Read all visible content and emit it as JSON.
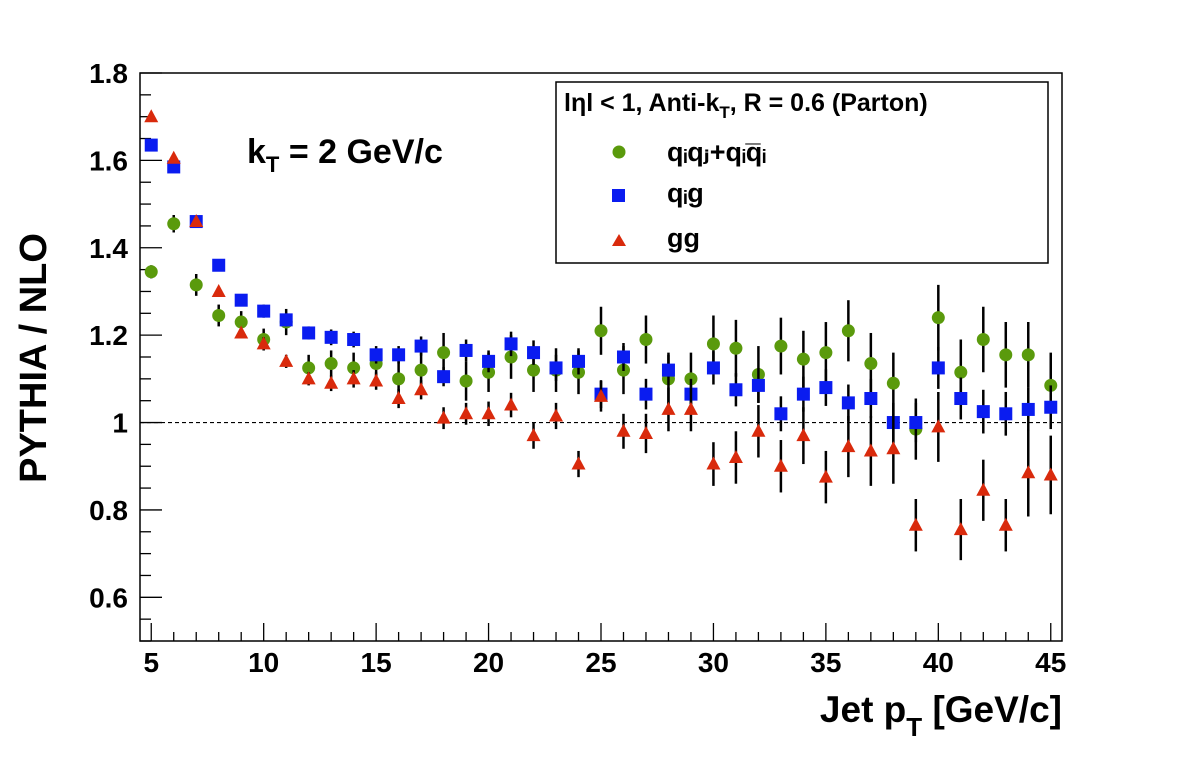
{
  "chart_data": {
    "type": "scatter",
    "xlabel_main": "Jet p",
    "xlabel_sub": "T",
    "xlabel_tail": " [GeV/c]",
    "ylabel": "PYTHIA / NLO",
    "xlim": [
      4.5,
      45.5
    ],
    "ylim": [
      0.5,
      1.8
    ],
    "xticks": [
      5,
      10,
      15,
      20,
      25,
      30,
      35,
      40,
      45
    ],
    "yticks": [
      0.6,
      0.8,
      1,
      1.2,
      1.4,
      1.6,
      1.8
    ],
    "ytick_labels": [
      "0.6",
      "0.8",
      "1",
      "1.2",
      "1.4",
      "1.6",
      "1.8"
    ],
    "reference_line": 1.0,
    "annotation": {
      "main": "k",
      "sub": "T",
      "tail": " = 2 GeV/c"
    },
    "legend": {
      "placement": "top-right",
      "header_pre": "lηl < 1, Anti-k",
      "header_sub": "T",
      "header_post": ", R = 0.6 (Parton)",
      "entries": [
        {
          "key": "qq",
          "label": "qᵢqⱼ+qᵢq̅ᵢ"
        },
        {
          "key": "qg",
          "label": "qᵢg"
        },
        {
          "key": "gg",
          "label": "gg"
        }
      ]
    },
    "series": [
      {
        "key": "qq",
        "marker": "circle",
        "color": "#5a9a0c",
        "x": [
          5,
          6,
          7,
          8,
          9,
          10,
          11,
          12,
          13,
          14,
          15,
          16,
          17,
          18,
          19,
          20,
          21,
          22,
          23,
          24,
          25,
          26,
          27,
          28,
          29,
          30,
          31,
          32,
          33,
          34,
          35,
          36,
          37,
          38,
          39,
          40,
          41,
          42,
          43,
          44,
          45
        ],
        "y": [
          1.345,
          1.455,
          1.315,
          1.245,
          1.23,
          1.19,
          1.23,
          1.125,
          1.135,
          1.125,
          1.135,
          1.1,
          1.12,
          1.16,
          1.095,
          1.115,
          1.15,
          1.12,
          1.12,
          1.115,
          1.21,
          1.12,
          1.19,
          1.1,
          1.1,
          1.18,
          1.17,
          1.11,
          1.175,
          1.145,
          1.16,
          1.21,
          1.135,
          1.09,
          0.985,
          1.24,
          1.115,
          1.19,
          1.155,
          1.155,
          1.085
        ],
        "err": [
          0.015,
          0.02,
          0.025,
          0.025,
          0.025,
          0.025,
          0.03,
          0.03,
          0.03,
          0.035,
          0.035,
          0.04,
          0.04,
          0.045,
          0.045,
          0.045,
          0.05,
          0.05,
          0.05,
          0.05,
          0.055,
          0.055,
          0.055,
          0.06,
          0.06,
          0.065,
          0.065,
          0.065,
          0.065,
          0.065,
          0.07,
          0.07,
          0.07,
          0.07,
          0.07,
          0.075,
          0.075,
          0.075,
          0.075,
          0.075,
          0.075
        ]
      },
      {
        "key": "qg",
        "marker": "square",
        "color": "#0a1cf0",
        "x": [
          5,
          6,
          7,
          8,
          9,
          10,
          11,
          12,
          13,
          14,
          15,
          16,
          17,
          18,
          19,
          20,
          21,
          22,
          23,
          24,
          25,
          26,
          27,
          28,
          29,
          30,
          31,
          32,
          33,
          34,
          35,
          36,
          37,
          38,
          39,
          40,
          41,
          42,
          43,
          44,
          45
        ],
        "y": [
          1.635,
          1.585,
          1.46,
          1.36,
          1.28,
          1.255,
          1.235,
          1.205,
          1.195,
          1.19,
          1.155,
          1.155,
          1.175,
          1.105,
          1.165,
          1.14,
          1.18,
          1.16,
          1.125,
          1.14,
          1.065,
          1.15,
          1.065,
          1.12,
          1.065,
          1.125,
          1.075,
          1.085,
          1.02,
          1.065,
          1.08,
          1.045,
          1.055,
          1.0,
          1.0,
          1.125,
          1.055,
          1.025,
          1.02,
          1.03,
          1.035
        ],
        "err": [
          0.01,
          0.01,
          0.01,
          0.01,
          0.012,
          0.015,
          0.015,
          0.015,
          0.018,
          0.018,
          0.02,
          0.02,
          0.022,
          0.022,
          0.025,
          0.025,
          0.028,
          0.028,
          0.03,
          0.03,
          0.032,
          0.032,
          0.035,
          0.035,
          0.035,
          0.038,
          0.038,
          0.04,
          0.04,
          0.04,
          0.042,
          0.042,
          0.045,
          0.045,
          0.045,
          0.048,
          0.048,
          0.05,
          0.05,
          0.05,
          0.05
        ]
      },
      {
        "key": "gg",
        "marker": "triangle",
        "color": "#d92a0c",
        "x": [
          5,
          6,
          7,
          8,
          9,
          10,
          11,
          12,
          13,
          14,
          15,
          16,
          17,
          18,
          19,
          20,
          21,
          22,
          23,
          24,
          25,
          26,
          27,
          28,
          29,
          30,
          31,
          32,
          33,
          34,
          35,
          36,
          37,
          38,
          39,
          40,
          41,
          42,
          43,
          44,
          45
        ],
        "y": [
          1.7,
          1.605,
          1.46,
          1.3,
          1.205,
          1.18,
          1.14,
          1.1,
          1.09,
          1.1,
          1.095,
          1.055,
          1.075,
          1.01,
          1.02,
          1.02,
          1.04,
          0.97,
          1.015,
          0.905,
          1.06,
          0.98,
          0.975,
          1.03,
          1.03,
          0.905,
          0.92,
          0.98,
          0.9,
          0.97,
          0.875,
          0.945,
          0.935,
          0.94,
          0.765,
          0.99,
          0.755,
          0.845,
          0.765,
          0.885,
          0.88
        ],
        "err": [
          0.01,
          0.01,
          0.01,
          0.01,
          0.012,
          0.015,
          0.015,
          0.015,
          0.018,
          0.02,
          0.02,
          0.022,
          0.022,
          0.025,
          0.025,
          0.028,
          0.028,
          0.03,
          0.03,
          0.03,
          0.035,
          0.04,
          0.045,
          0.05,
          0.05,
          0.05,
          0.06,
          0.06,
          0.06,
          0.065,
          0.06,
          0.07,
          0.08,
          0.08,
          0.06,
          0.08,
          0.07,
          0.07,
          0.06,
          0.1,
          0.09
        ]
      }
    ]
  }
}
